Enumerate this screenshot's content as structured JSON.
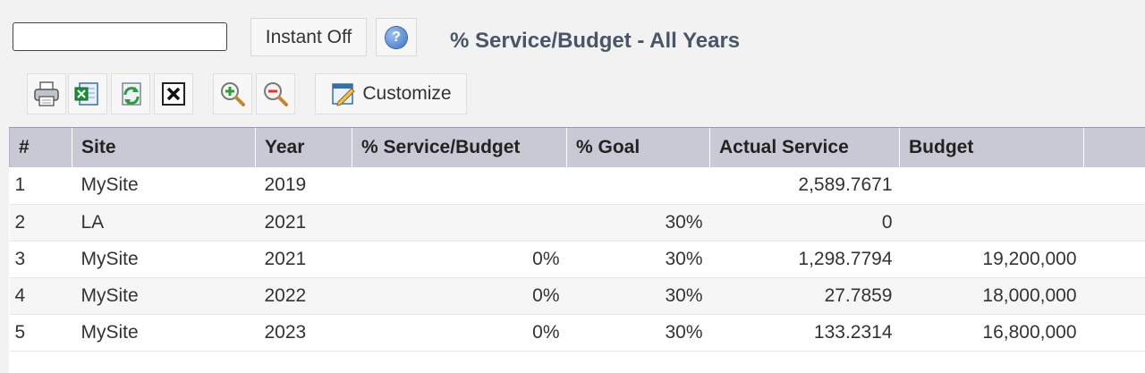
{
  "search": {
    "value": "",
    "placeholder": ""
  },
  "instant_button": {
    "label": "Instant Off"
  },
  "help_button": {
    "icon": "help-icon",
    "glyph": "?"
  },
  "title": "% Service/Budget - All Years",
  "toolbar": {
    "print_icon": "printer-icon",
    "excel_icon": "excel-export-icon",
    "refresh_icon": "refresh-icon",
    "clear_icon": "close-box-icon",
    "zoom_in_icon": "zoom-in-icon",
    "zoom_out_icon": "zoom-out-icon",
    "customize_label": "Customize"
  },
  "table": {
    "columns": [
      "#",
      "Site",
      "Year",
      "% Service/Budget",
      "% Goal",
      "Actual Service",
      "Budget"
    ],
    "rows": [
      [
        "1",
        "MySite",
        "2019",
        "",
        "",
        "2,589.7671",
        ""
      ],
      [
        "2",
        "LA",
        "2021",
        "",
        "30%",
        "0",
        ""
      ],
      [
        "3",
        "MySite",
        "2021",
        "0%",
        "30%",
        "1,298.7794",
        "19,200,000"
      ],
      [
        "4",
        "MySite",
        "2022",
        "0%",
        "30%",
        "27.7859",
        "18,000,000"
      ],
      [
        "5",
        "MySite",
        "2023",
        "0%",
        "30%",
        "133.2314",
        "16,800,000"
      ]
    ]
  },
  "colors": {
    "header_bg": "#c9c9d6",
    "title_color": "#4a5568",
    "row_alt_bg": "#f6f6f6"
  }
}
